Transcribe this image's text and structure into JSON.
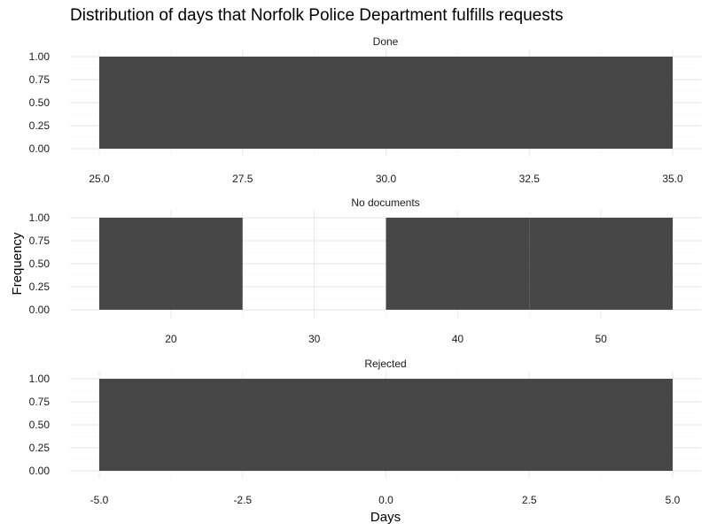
{
  "chart_data": {
    "type": "bar",
    "title": "Distribution of days that Norfolk Police Department fulfills requests",
    "xlabel": "Days",
    "ylabel": "Frequency",
    "bar_color": "#474747",
    "grid": true,
    "panels": [
      {
        "strip": "Done",
        "xlim": [
          25,
          35
        ],
        "ylim": [
          0,
          1
        ],
        "xticks": [
          25,
          27.5,
          30,
          32.5,
          35
        ],
        "xtick_labels": [
          "25.0",
          "27.5",
          "30.0",
          "32.5",
          "35.0"
        ],
        "yticks": [
          0,
          0.25,
          0.5,
          0.75,
          1
        ],
        "ytick_labels": [
          "0.00",
          "0.25",
          "0.50",
          "0.75",
          "1.00"
        ],
        "bins": [
          {
            "x0": 25,
            "x1": 35,
            "count": 1
          }
        ]
      },
      {
        "strip": "No documents",
        "xlim": [
          15,
          55
        ],
        "ylim": [
          0,
          1
        ],
        "xticks": [
          20,
          30,
          40,
          50
        ],
        "xtick_labels": [
          "20",
          "30",
          "40",
          "50"
        ],
        "yticks": [
          0,
          0.25,
          0.5,
          0.75,
          1
        ],
        "ytick_labels": [
          "0.00",
          "0.25",
          "0.50",
          "0.75",
          "1.00"
        ],
        "bins": [
          {
            "x0": 15,
            "x1": 25,
            "count": 1
          },
          {
            "x0": 25,
            "x1": 35,
            "count": 0
          },
          {
            "x0": 35,
            "x1": 45,
            "count": 1
          },
          {
            "x0": 45,
            "x1": 55,
            "count": 1
          }
        ]
      },
      {
        "strip": "Rejected",
        "xlim": [
          -5,
          5
        ],
        "ylim": [
          0,
          1
        ],
        "xticks": [
          -5,
          -2.5,
          0,
          2.5,
          5
        ],
        "xtick_labels": [
          "-5.0",
          "-2.5",
          "0.0",
          "2.5",
          "5.0"
        ],
        "yticks": [
          0,
          0.25,
          0.5,
          0.75,
          1
        ],
        "ytick_labels": [
          "0.00",
          "0.25",
          "0.50",
          "0.75",
          "1.00"
        ],
        "bins": [
          {
            "x0": -5,
            "x1": 5,
            "count": 1
          }
        ]
      }
    ]
  }
}
